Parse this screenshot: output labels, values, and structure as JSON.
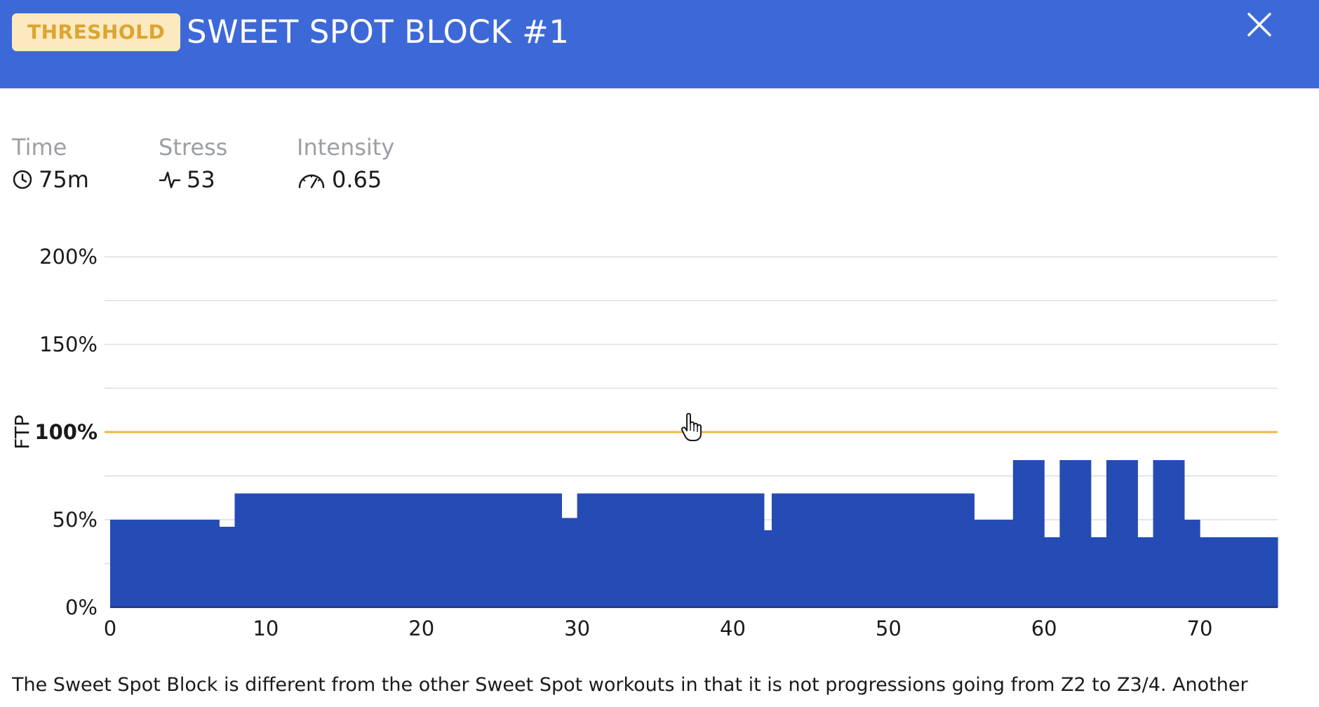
{
  "header": {
    "badge": "THRESHOLD",
    "title": "SWEET SPOT BLOCK #1",
    "close_icon": "close-icon",
    "colors": {
      "background": "#3d68d8",
      "badge_bg": "#fbe9bf",
      "badge_text": "#dba531"
    }
  },
  "stats": {
    "time": {
      "label": "Time",
      "value": "75m",
      "icon": "clock-icon"
    },
    "stress": {
      "label": "Stress",
      "value": "53",
      "icon": "pulse-icon"
    },
    "intensity": {
      "label": "Intensity",
      "value": "0.65",
      "icon": "gauge-icon"
    }
  },
  "chart_data": {
    "type": "area",
    "ylabel": "FTP",
    "xlabel": "",
    "xlim": [
      0,
      75
    ],
    "ylim": [
      0,
      200
    ],
    "x_ticks": [
      "0",
      "10",
      "20",
      "30",
      "40",
      "50",
      "60",
      "70"
    ],
    "y_ticks": [
      "0%",
      "50%",
      "150%",
      "200%"
    ],
    "ftp_label": "100%",
    "ftp_value": 100,
    "grid": true,
    "colors": {
      "bar": "#254bb5",
      "ftp_line": "#f0b73f",
      "grid": "#dddddd"
    },
    "segments": [
      {
        "start": 0,
        "end": 7,
        "value": 50
      },
      {
        "start": 7,
        "end": 8,
        "value": 46
      },
      {
        "start": 8,
        "end": 29,
        "value": 65
      },
      {
        "start": 29,
        "end": 30,
        "value": 51
      },
      {
        "start": 30,
        "end": 42,
        "value": 65
      },
      {
        "start": 42,
        "end": 42.5,
        "value": 44
      },
      {
        "start": 42.5,
        "end": 55.5,
        "value": 65
      },
      {
        "start": 55.5,
        "end": 58,
        "value": 50
      },
      {
        "start": 58,
        "end": 60,
        "value": 84
      },
      {
        "start": 60,
        "end": 61,
        "value": 40
      },
      {
        "start": 61,
        "end": 63,
        "value": 84
      },
      {
        "start": 63,
        "end": 64,
        "value": 40
      },
      {
        "start": 64,
        "end": 66,
        "value": 84
      },
      {
        "start": 66,
        "end": 67,
        "value": 40
      },
      {
        "start": 67,
        "end": 69,
        "value": 84
      },
      {
        "start": 69,
        "end": 70,
        "value": 50
      },
      {
        "start": 70,
        "end": 75,
        "value": 40
      }
    ]
  },
  "description": "The Sweet Spot Block is different from the other Sweet Spot workouts in that it is not progressions going from Z2 to Z3/4. Another"
}
